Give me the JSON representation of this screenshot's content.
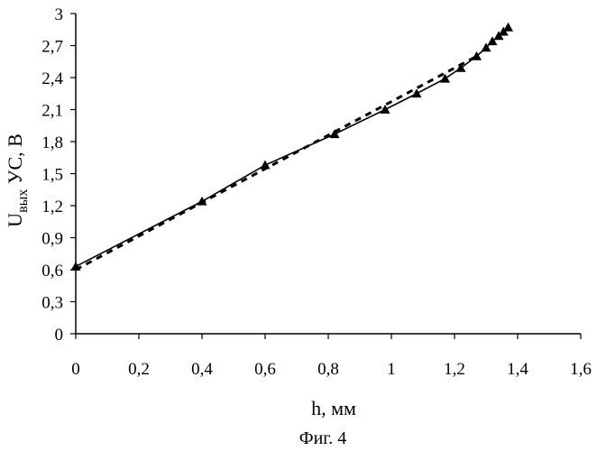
{
  "chart_data": {
    "type": "line",
    "title": "",
    "xlabel": "h, мм",
    "ylabel": {
      "main": "U",
      "subscript": "вых",
      "rest": " УС, В"
    },
    "xlim": [
      0,
      1.6
    ],
    "ylim": [
      0,
      3
    ],
    "x_ticks": [
      "0",
      "0,2",
      "0,4",
      "0,6",
      "0,8",
      "1",
      "1,2",
      "1,4",
      "1,6"
    ],
    "y_ticks": [
      "0",
      "0,3",
      "0,6",
      "0,9",
      "1,2",
      "1,5",
      "1,8",
      "2,1",
      "2,4",
      "2,7",
      "3"
    ],
    "grid": false,
    "legend": "none",
    "series": [
      {
        "style": "solid line with triangle markers",
        "color": "#000000",
        "x": [
          0,
          0.4,
          0.6,
          0.82,
          0.98,
          1.08,
          1.17,
          1.22,
          1.27,
          1.3,
          1.32,
          1.34,
          1.355,
          1.37
        ],
        "y": [
          0.63,
          1.24,
          1.58,
          1.87,
          2.1,
          2.25,
          2.39,
          2.49,
          2.6,
          2.68,
          2.74,
          2.79,
          2.83,
          2.87
        ]
      },
      {
        "style": "dashed linear fit",
        "color": "#000000",
        "x": [
          0,
          1.27
        ],
        "y": [
          0.6,
          2.6
        ]
      }
    ]
  },
  "caption": "Фиг. 4"
}
